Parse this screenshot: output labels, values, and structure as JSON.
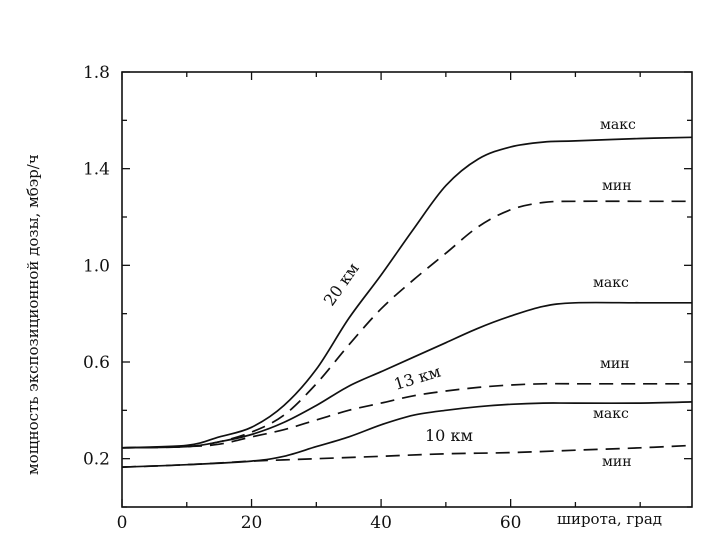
{
  "chart_data": {
    "type": "line",
    "title": "",
    "xlabel": "широта, град",
    "ylabel": "мощность экспозиционной дозы, мбэр/ч",
    "xlim": [
      0,
      88
    ],
    "ylim": [
      0.0,
      1.8
    ],
    "x_ticks": [
      0,
      20,
      40,
      60
    ],
    "y_ticks": [
      0.2,
      0.6,
      1.0,
      1.4,
      1.8
    ],
    "grid": false,
    "series": [
      {
        "name": "20 км",
        "curve_label": "макс",
        "dashed": false,
        "x": [
          0,
          10,
          15,
          20,
          25,
          30,
          35,
          40,
          45,
          50,
          55,
          60,
          65,
          70,
          80,
          88
        ],
        "y": [
          0.245,
          0.255,
          0.29,
          0.33,
          0.42,
          0.57,
          0.78,
          0.96,
          1.15,
          1.33,
          1.44,
          1.49,
          1.51,
          1.515,
          1.525,
          1.53
        ]
      },
      {
        "name": "20 км",
        "curve_label": "мин",
        "dashed": true,
        "x": [
          0,
          10,
          15,
          20,
          25,
          30,
          35,
          40,
          45,
          50,
          55,
          60,
          65,
          70,
          80,
          88
        ],
        "y": [
          0.245,
          0.25,
          0.27,
          0.31,
          0.38,
          0.51,
          0.67,
          0.82,
          0.94,
          1.05,
          1.16,
          1.23,
          1.26,
          1.265,
          1.265,
          1.265
        ]
      },
      {
        "name": "13 км",
        "curve_label": "макс",
        "dashed": false,
        "x": [
          0,
          10,
          15,
          20,
          25,
          30,
          35,
          40,
          45,
          50,
          55,
          60,
          65,
          70,
          80,
          88
        ],
        "y": [
          0.245,
          0.25,
          0.27,
          0.3,
          0.35,
          0.42,
          0.5,
          0.56,
          0.62,
          0.68,
          0.74,
          0.79,
          0.83,
          0.845,
          0.845,
          0.845
        ]
      },
      {
        "name": "13 км",
        "curve_label": "мин",
        "dashed": true,
        "x": [
          0,
          10,
          15,
          20,
          25,
          30,
          35,
          40,
          45,
          50,
          55,
          60,
          65,
          70,
          80,
          88
        ],
        "y": [
          0.245,
          0.25,
          0.26,
          0.29,
          0.32,
          0.36,
          0.4,
          0.43,
          0.46,
          0.48,
          0.495,
          0.505,
          0.51,
          0.51,
          0.51,
          0.51
        ]
      },
      {
        "name": "10 км",
        "curve_label": "макс",
        "dashed": false,
        "x": [
          0,
          10,
          20,
          25,
          30,
          35,
          40,
          45,
          50,
          55,
          60,
          65,
          70,
          80,
          88
        ],
        "y": [
          0.165,
          0.175,
          0.19,
          0.21,
          0.25,
          0.29,
          0.34,
          0.38,
          0.4,
          0.415,
          0.425,
          0.43,
          0.43,
          0.43,
          0.435
        ]
      },
      {
        "name": "10 км",
        "curve_label": "мин",
        "dashed": true,
        "x": [
          0,
          10,
          20,
          25,
          30,
          40,
          50,
          60,
          70,
          80,
          88
        ],
        "y": [
          0.165,
          0.175,
          0.19,
          0.195,
          0.2,
          0.21,
          0.22,
          0.225,
          0.235,
          0.245,
          0.255
        ]
      }
    ],
    "annotations": {
      "alt_20": "20 км",
      "alt_13": "13 км",
      "alt_10": "10 км",
      "max_label": "макс",
      "min_label": "мин"
    }
  }
}
